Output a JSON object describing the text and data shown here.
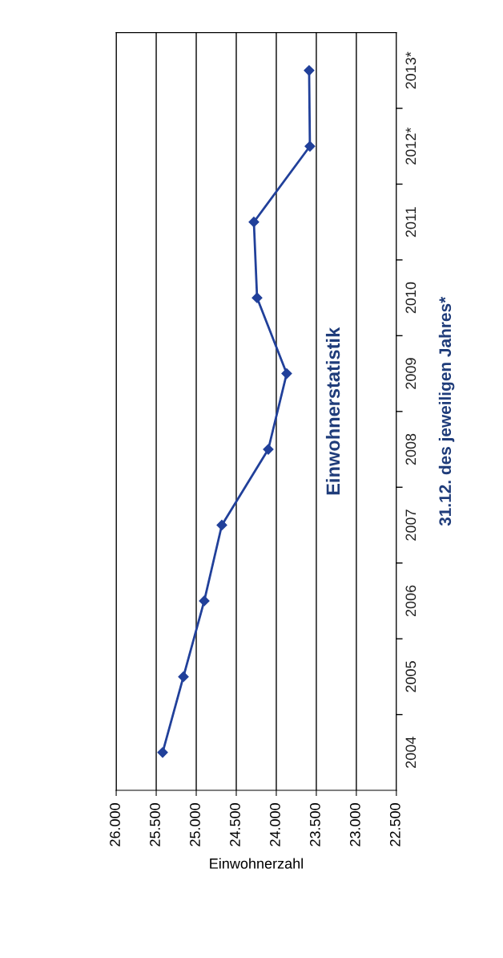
{
  "chart_data": {
    "type": "line",
    "orientation": "horizontal",
    "title": "Einwohnerstatistik",
    "xlabel": "Einwohnerzahl",
    "ylabel": "31.12. des jeweiligen Jahres*",
    "categories": [
      "2013*",
      "2012*",
      "2011",
      "2010",
      "2009",
      "2008",
      "2007",
      "2006",
      "2005",
      "2004"
    ],
    "series": [
      {
        "color": "#21409a",
        "values": [
          23590,
          23580,
          24280,
          24240,
          23870,
          24100,
          24680,
          24900,
          25160,
          25420
        ]
      }
    ],
    "xlim": [
      26000,
      22500
    ],
    "xticks": [
      {
        "value": 26000,
        "label": "26.000"
      },
      {
        "value": 25500,
        "label": "25.500"
      },
      {
        "value": 25000,
        "label": "25.000"
      },
      {
        "value": 24500,
        "label": "24.500"
      },
      {
        "value": 24000,
        "label": "24.000"
      },
      {
        "value": 23500,
        "label": "23.500"
      },
      {
        "value": 23000,
        "label": "23.000"
      },
      {
        "value": 22500,
        "label": "22.500"
      }
    ],
    "grid": "x",
    "marker": "diamond",
    "line_style": "solid",
    "legend": false
  }
}
